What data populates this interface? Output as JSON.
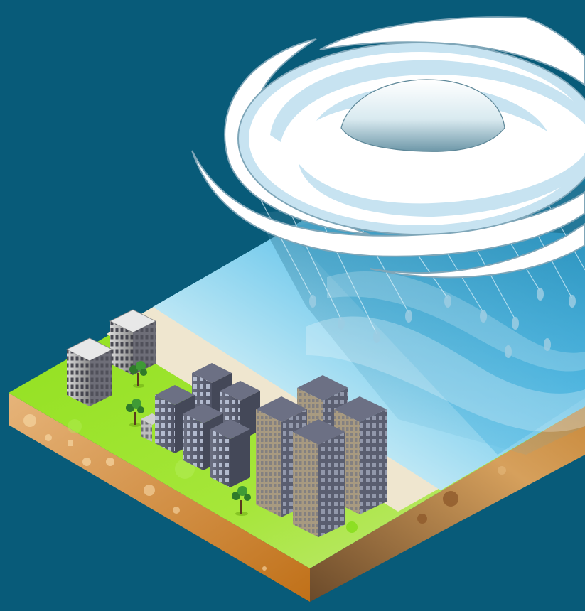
{
  "scene": {
    "background_color": "#085b79",
    "elements": [
      "hurricane-cloud",
      "rain",
      "ocean",
      "beach",
      "grass",
      "soil-layer",
      "buildings",
      "trees"
    ]
  },
  "colors": {
    "background": "#085b79",
    "cloud": "#ffffff",
    "cloud_shadow": "#b9dff2",
    "ocean_light": "#bfe8f5",
    "ocean_deep": "#1f9fd6",
    "sand": "#efe6cf",
    "grass": "#8fe01c",
    "soil": "#c88a3c",
    "building_dark": "#5d6173",
    "building_tan": "#a89a80"
  }
}
